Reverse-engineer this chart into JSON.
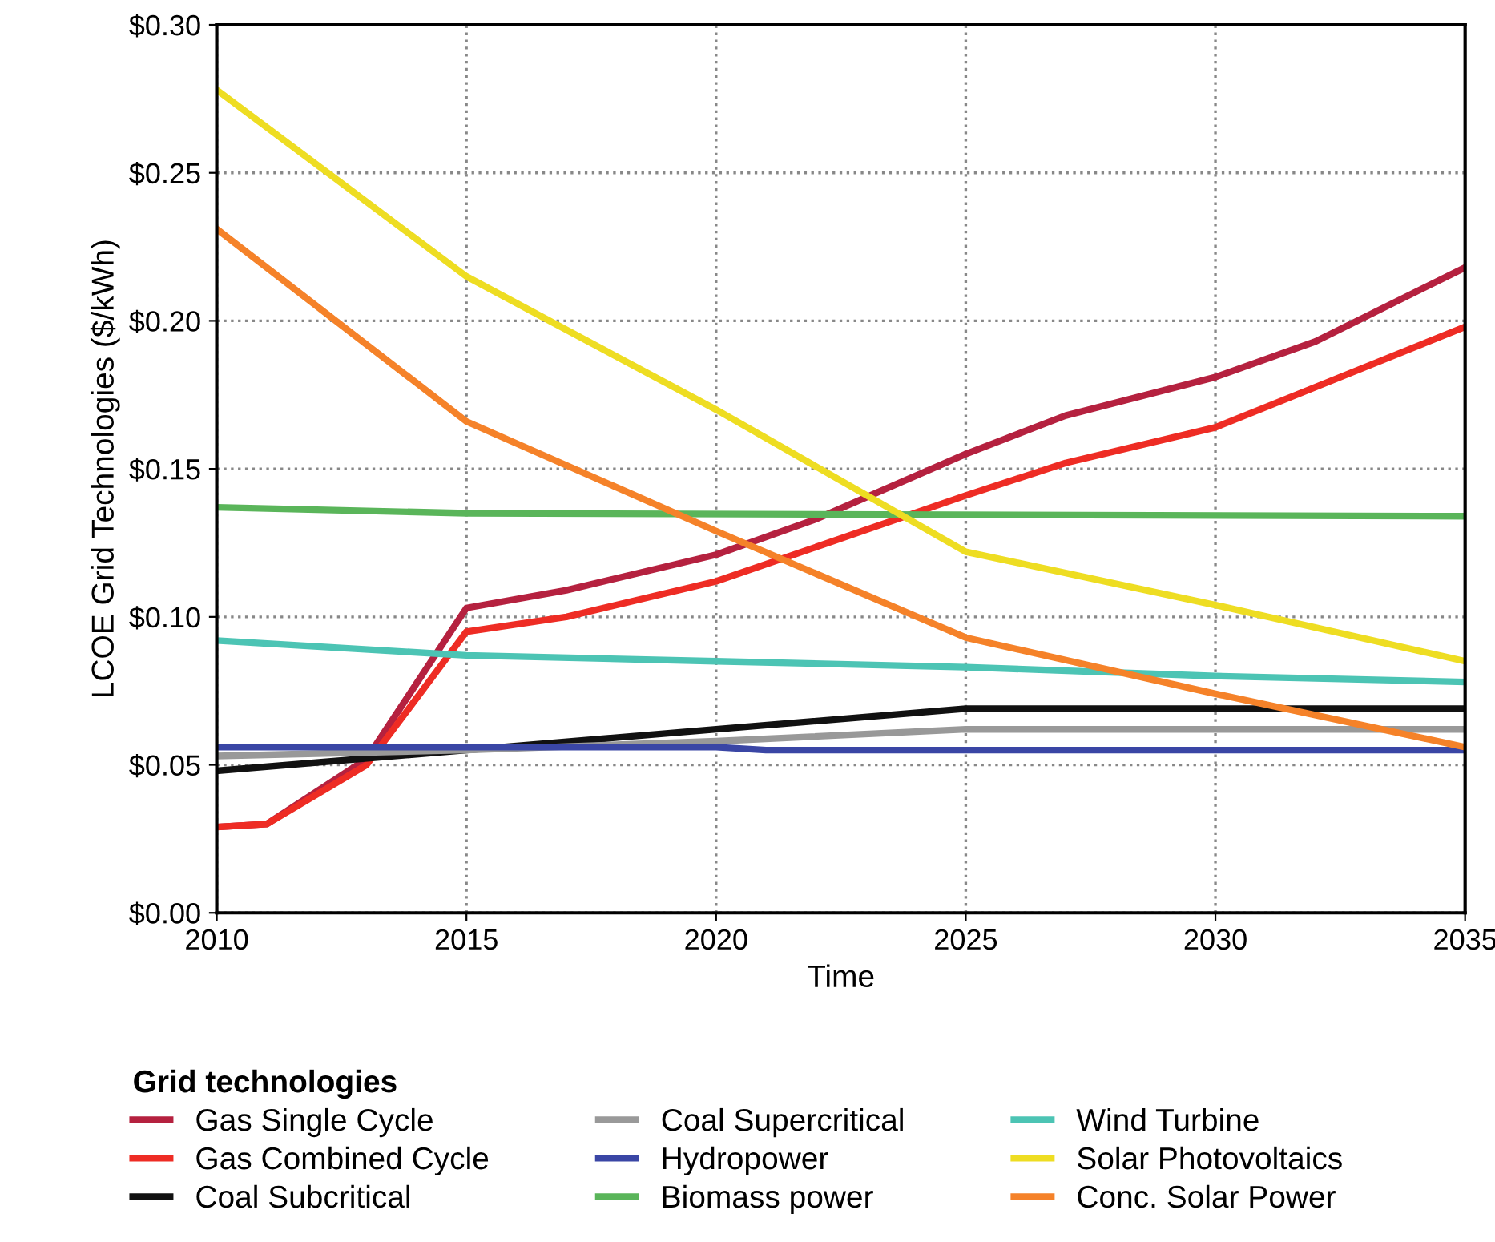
{
  "chart_data": {
    "type": "line",
    "xlabel": "Time",
    "ylabel": "LCOE Grid Technologies ($/kWh)",
    "legend_title": "Grid technologies",
    "legend": "bottom",
    "grid": true,
    "line_style": "solid",
    "marker": "none",
    "xlim": [
      2010,
      2035
    ],
    "xticks": [
      2010,
      2015,
      2020,
      2025,
      2030,
      2035
    ],
    "ylim": [
      0,
      0.3
    ],
    "yticks": [
      {
        "value": 0,
        "label": "$0.00"
      },
      {
        "value": 0.05,
        "label": "$0.05"
      },
      {
        "value": 0.1,
        "label": "$0.10"
      },
      {
        "value": 0.15,
        "label": "$0.15"
      },
      {
        "value": 0.2,
        "label": "$0.20"
      },
      {
        "value": 0.25,
        "label": "$0.25"
      },
      {
        "value": 0.3,
        "label": "$0.30"
      }
    ],
    "series": [
      {
        "name": "Gas Single Cycle",
        "color": "#b5213f",
        "x": [
          2010,
          2011,
          2013,
          2015,
          2017,
          2020,
          2022,
          2025,
          2027,
          2030,
          2032,
          2035
        ],
        "values": [
          0.029,
          0.03,
          0.052,
          0.103,
          0.109,
          0.121,
          0.133,
          0.155,
          0.168,
          0.181,
          0.193,
          0.218
        ]
      },
      {
        "name": "Gas Combined Cycle",
        "color": "#ee2c24",
        "x": [
          2010,
          2011,
          2013,
          2015,
          2017,
          2020,
          2025,
          2027,
          2030,
          2035
        ],
        "values": [
          0.029,
          0.03,
          0.05,
          0.095,
          0.1,
          0.112,
          0.141,
          0.152,
          0.164,
          0.198
        ]
      },
      {
        "name": "Coal Subcritical",
        "color": "#111111",
        "x": [
          2010,
          2015,
          2020,
          2025,
          2035
        ],
        "values": [
          0.048,
          0.055,
          0.062,
          0.069,
          0.069
        ]
      },
      {
        "name": "Coal Supercritical",
        "color": "#999999",
        "x": [
          2010,
          2015,
          2020,
          2025,
          2035
        ],
        "values": [
          0.053,
          0.055,
          0.058,
          0.062,
          0.062
        ]
      },
      {
        "name": "Hydropower",
        "color": "#3a46a5",
        "x": [
          2010,
          2020,
          2021,
          2035
        ],
        "values": [
          0.056,
          0.056,
          0.055,
          0.055
        ]
      },
      {
        "name": "Biomass power",
        "color": "#5ab55a",
        "x": [
          2010,
          2015,
          2035
        ],
        "values": [
          0.137,
          0.135,
          0.134
        ]
      },
      {
        "name": "Wind Turbine",
        "color": "#4cc4b4",
        "x": [
          2010,
          2015,
          2020,
          2025,
          2030,
          2035
        ],
        "values": [
          0.092,
          0.087,
          0.085,
          0.083,
          0.08,
          0.078
        ]
      },
      {
        "name": "Solar Photovoltaics",
        "color": "#eedd22",
        "x": [
          2010,
          2015,
          2020,
          2025,
          2030,
          2035
        ],
        "values": [
          0.278,
          0.215,
          0.17,
          0.122,
          0.104,
          0.085
        ]
      },
      {
        "name": "Conc. Solar Power",
        "color": "#f58229",
        "x": [
          2010,
          2015,
          2020,
          2025,
          2030,
          2035
        ],
        "values": [
          0.231,
          0.166,
          0.129,
          0.093,
          0.074,
          0.056
        ]
      }
    ]
  }
}
